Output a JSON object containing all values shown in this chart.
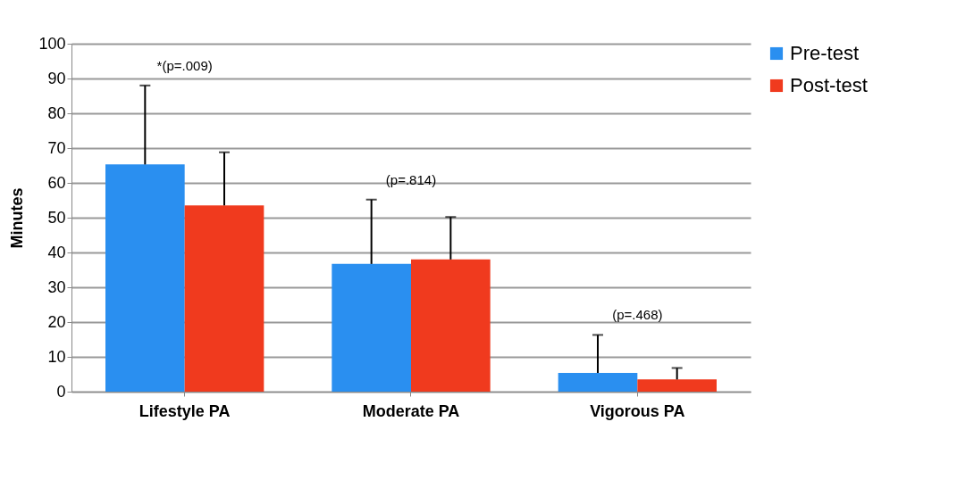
{
  "chart_data": {
    "type": "bar",
    "ylabel": "Minutes",
    "categories": [
      "Lifestyle PA",
      "Moderate PA",
      "Vigorous PA"
    ],
    "series": [
      {
        "name": "Pre-test",
        "color": "#2a8ff0",
        "values": [
          65.3,
          36.7,
          5.4
        ],
        "errors": [
          [
            65.3,
            88
          ],
          [
            36.7,
            55.2
          ],
          [
            5.4,
            16.3
          ]
        ]
      },
      {
        "name": "Post-test",
        "color": "#f03a1e",
        "values": [
          53.5,
          38,
          3.5
        ],
        "errors": [
          [
            53.5,
            68.8
          ],
          [
            38,
            50.2
          ],
          [
            3.5,
            6.8
          ]
        ]
      }
    ],
    "ylim": [
      0,
      100
    ],
    "yticks": [
      0,
      10,
      20,
      30,
      40,
      50,
      60,
      70,
      80,
      90,
      100
    ],
    "grid": "y",
    "legend": "right",
    "annotations": [
      "*(p=.009)",
      "(p=.814)",
      "(p=.468)"
    ]
  }
}
